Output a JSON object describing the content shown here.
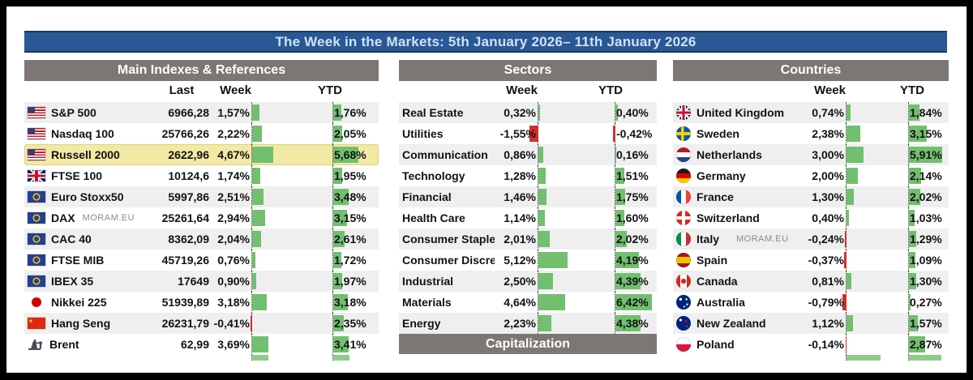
{
  "title": "The Week in the Markets: 5th January 2026– 11th January 2026",
  "colors": {
    "blue": "#2a5795",
    "blue_dark": "#17395f",
    "title_text": "#cfe2f4",
    "header_gray": "#7c7774",
    "stripe": "#efefef",
    "green": "#72bf6f",
    "red": "#d92b2b",
    "highlight": "#f2e9a4",
    "text": "#121212",
    "watermark": "#8b8b8b"
  },
  "chart_data": [
    {
      "type": "table",
      "title": "Main Indexes & References",
      "columns": [
        "Last",
        "Week",
        "YTD"
      ],
      "rows": [
        {
          "name": "S&P 500",
          "flag": "flag-us",
          "last": "6966,28",
          "week": "1,57%",
          "ytd": "1,76%"
        },
        {
          "name": "Nasdaq 100",
          "flag": "flag-us",
          "last": "25766,26",
          "week": "2,22%",
          "ytd": "2,05%"
        },
        {
          "name": "Russell 2000",
          "flag": "flag-us",
          "last": "2622,96",
          "week": "4,67%",
          "ytd": "5,68%",
          "highlight": true
        },
        {
          "name": "FTSE 100",
          "flag": "flag-uk",
          "last": "10124,6",
          "week": "1,74%",
          "ytd": "1,95%"
        },
        {
          "name": "Euro Stoxx50",
          "flag": "flag-eu",
          "last": "5997,86",
          "week": "2,51%",
          "ytd": "3,48%"
        },
        {
          "name": "DAX",
          "flag": "flag-eu",
          "last": "25261,64",
          "week": "2,94%",
          "ytd": "3,15%",
          "watermark": "MORAM.EU"
        },
        {
          "name": "CAC 40",
          "flag": "flag-eu",
          "last": "8362,09",
          "week": "2,04%",
          "ytd": "2,61%"
        },
        {
          "name": "FTSE MIB",
          "flag": "flag-eu",
          "last": "45719,26",
          "week": "0,76%",
          "ytd": "1,72%"
        },
        {
          "name": "IBEX 35",
          "flag": "flag-eu",
          "last": "17649",
          "week": "0,90%",
          "ytd": "1,97%"
        },
        {
          "name": "Nikkei 225",
          "flag": "flag-japan",
          "last": "51939,89",
          "week": "3,18%",
          "ytd": "3,18%"
        },
        {
          "name": "Hang Seng",
          "flag": "flag-china",
          "last": "26231,79",
          "week": "-0,41%",
          "ytd": "2,35%"
        },
        {
          "name": "Brent",
          "flag": "oil-barrel",
          "last": "62,99",
          "week": "3,69%",
          "ytd": "3,41%"
        }
      ]
    },
    {
      "type": "table",
      "title": "Sectors",
      "columns": [
        "Week",
        "YTD"
      ],
      "footer": "Capitalization",
      "rows": [
        {
          "name": "Real Estate",
          "week": "0,32%",
          "ytd": "0,40%"
        },
        {
          "name": "Utilities",
          "week": "-1,55%",
          "ytd": "-0,42%"
        },
        {
          "name": "Communication",
          "week": "0,86%",
          "ytd": "0,16%"
        },
        {
          "name": "Technology",
          "week": "1,28%",
          "ytd": "1,51%"
        },
        {
          "name": "Financial",
          "week": "1,46%",
          "ytd": "1,75%"
        },
        {
          "name": "Health Care",
          "week": "1,14%",
          "ytd": "1,60%"
        },
        {
          "name": "Consumer Staple",
          "week": "2,01%",
          "ytd": "2,02%"
        },
        {
          "name": "Consumer Discre",
          "week": "5,12%",
          "ytd": "4,19%"
        },
        {
          "name": "Industrial",
          "week": "2,50%",
          "ytd": "4,39%"
        },
        {
          "name": "Materials",
          "week": "4,64%",
          "ytd": "6,42%"
        },
        {
          "name": "Energy",
          "week": "2,23%",
          "ytd": "4,38%"
        }
      ]
    },
    {
      "type": "table",
      "title": "Countries",
      "columns": [
        "Week",
        "YTD"
      ],
      "rows": [
        {
          "name": "United Kingdom",
          "flag": "flag-uk",
          "week": "0,74%",
          "ytd": "1,84%"
        },
        {
          "name": "Sweden",
          "flag": "flag-sweden",
          "week": "2,38%",
          "ytd": "3,15%"
        },
        {
          "name": "Netherlands",
          "flag": "flag-netherlands",
          "week": "3,00%",
          "ytd": "5,91%"
        },
        {
          "name": "Germany",
          "flag": "flag-germany",
          "week": "2,00%",
          "ytd": "2,14%"
        },
        {
          "name": "France",
          "flag": "flag-france",
          "week": "1,30%",
          "ytd": "2,02%"
        },
        {
          "name": "Switzerland",
          "flag": "flag-switzerland",
          "week": "0,40%",
          "ytd": "1,03%"
        },
        {
          "name": "Italy",
          "flag": "flag-italy",
          "week": "-0,24%",
          "ytd": "1,29%",
          "watermark": "MORAM.EU"
        },
        {
          "name": "Spain",
          "flag": "flag-spain",
          "week": "-0,37%",
          "ytd": "1,09%"
        },
        {
          "name": "Canada",
          "flag": "flag-canada",
          "week": "0,81%",
          "ytd": "1,30%"
        },
        {
          "name": "Australia",
          "flag": "flag-australia",
          "week": "-0,79%",
          "ytd": "0,27%"
        },
        {
          "name": "New Zealand",
          "flag": "flag-newzealand",
          "week": "1,12%",
          "ytd": "1,57%"
        },
        {
          "name": "Poland",
          "flag": "flag-poland",
          "week": "-0,14%",
          "ytd": "2,87%"
        }
      ]
    }
  ]
}
